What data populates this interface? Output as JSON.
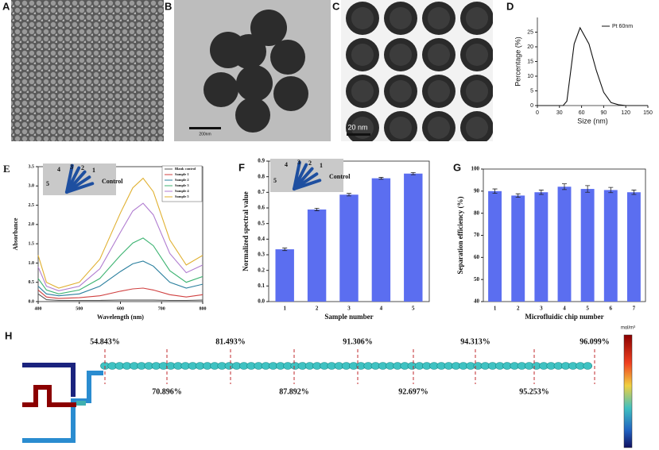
{
  "panel_labels": [
    "A",
    "B",
    "C",
    "D",
    "E",
    "F",
    "G",
    "H"
  ],
  "scale_bars": [
    "200nm",
    "20 nm"
  ],
  "chart_data": [
    {
      "type": "line",
      "xlabel": "Size (nm)",
      "ylabel": "Percentage (%)",
      "x": [
        0,
        35,
        40,
        50,
        58,
        70,
        80,
        90,
        100,
        110,
        120,
        150
      ],
      "series": [
        {
          "name": "Pt 60nm",
          "color": "#111111",
          "values": [
            0,
            0,
            1.5,
            21,
            26.5,
            21,
            12,
            4.5,
            1,
            0.3,
            0,
            0
          ]
        }
      ],
      "xlim": [
        0,
        150
      ],
      "xticks": [
        0,
        30,
        60,
        90,
        120,
        150
      ],
      "ylim": [
        0,
        30
      ],
      "yticks": [
        0,
        5,
        10,
        15,
        20,
        25
      ],
      "legend": "upper right"
    },
    {
      "type": "line",
      "xlabel": "Wavelength (nm)",
      "ylabel": "Absorbance",
      "x": [
        400,
        420,
        450,
        500,
        550,
        600,
        630,
        655,
        680,
        720,
        760,
        800
      ],
      "series": [
        {
          "name": "Blank control",
          "color": "#555555",
          "values": [
            0.2,
            0.05,
            0.03,
            0.03,
            0.03,
            0.04,
            0.04,
            0.04,
            0.04,
            0.03,
            0.03,
            0.04
          ]
        },
        {
          "name": "Sample 1",
          "color": "#d04040",
          "values": [
            0.3,
            0.12,
            0.08,
            0.1,
            0.15,
            0.27,
            0.33,
            0.35,
            0.3,
            0.18,
            0.12,
            0.18
          ]
        },
        {
          "name": "Sample 2",
          "color": "#2a7f9e",
          "values": [
            0.4,
            0.2,
            0.15,
            0.2,
            0.4,
            0.78,
            0.98,
            1.05,
            0.92,
            0.5,
            0.35,
            0.45
          ]
        },
        {
          "name": "Sample 3",
          "color": "#3cb371",
          "values": [
            0.6,
            0.3,
            0.2,
            0.3,
            0.6,
            1.2,
            1.52,
            1.65,
            1.45,
            0.8,
            0.5,
            0.65
          ]
        },
        {
          "name": "Sample 4",
          "color": "#b07cd0",
          "values": [
            0.9,
            0.4,
            0.28,
            0.4,
            0.85,
            1.8,
            2.35,
            2.55,
            2.25,
            1.25,
            0.75,
            0.95
          ]
        },
        {
          "name": "Sample 5",
          "color": "#e0b030",
          "values": [
            1.2,
            0.5,
            0.35,
            0.5,
            1.1,
            2.3,
            2.95,
            3.2,
            2.85,
            1.6,
            0.95,
            1.2
          ]
        }
      ],
      "xlim": [
        400,
        800
      ],
      "xticks": [
        400,
        500,
        600,
        700,
        800
      ],
      "ylim": [
        0,
        3.5
      ],
      "yticks": [
        {
          "value": 0,
          "label": "0.0"
        },
        0.5,
        {
          "value": 1,
          "label": "1.0"
        },
        1.5,
        {
          "value": 2,
          "label": "2.0"
        },
        2.5,
        {
          "value": 3,
          "label": "3.0"
        },
        3.5
      ],
      "legend": "upper right",
      "annotations": [
        "5",
        "4",
        "3",
        "2",
        "1",
        "Control"
      ]
    },
    {
      "type": "bar",
      "xlabel": "Sample number",
      "ylabel": "Normalized spectral value",
      "categories": [
        "1",
        "2",
        "3",
        "4",
        "5"
      ],
      "values": [
        0.335,
        0.59,
        0.685,
        0.79,
        0.82
      ],
      "errors": [
        0.008,
        0.008,
        0.008,
        0.006,
        0.007
      ],
      "color": "#5b6ef0",
      "ylim": [
        0,
        0.9
      ],
      "yticks": [
        {
          "value": 0,
          "label": "0.0"
        },
        0.1,
        0.2,
        0.3,
        0.4,
        0.5,
        0.6,
        0.7,
        0.8,
        0.9
      ],
      "annotations": [
        "5",
        "4",
        "3",
        "2",
        "1",
        "Control"
      ]
    },
    {
      "type": "bar",
      "xlabel": "Microfluidic chip number",
      "ylabel": "Separation efficiency (%)",
      "categories": [
        "1",
        "2",
        "3",
        "4",
        "5",
        "6",
        "7"
      ],
      "values": [
        90,
        88,
        89.5,
        92,
        91,
        90.5,
        89.5
      ],
      "errors": [
        1,
        0.8,
        1,
        1.3,
        1.5,
        1.2,
        1
      ],
      "color": "#5b6ef0",
      "ylim": [
        40,
        100
      ],
      "yticks": [
        40,
        50,
        60,
        70,
        80,
        90,
        100
      ]
    }
  ],
  "diagram_h": {
    "top_labels": [
      "54.843%",
      "81.493%",
      "91.306%",
      "94.313%",
      "96.099%"
    ],
    "bottom_labels": [
      "70.896%",
      "87.892%",
      "92.697%",
      "95.253%"
    ],
    "colorbar_unit": "mol/m³"
  }
}
